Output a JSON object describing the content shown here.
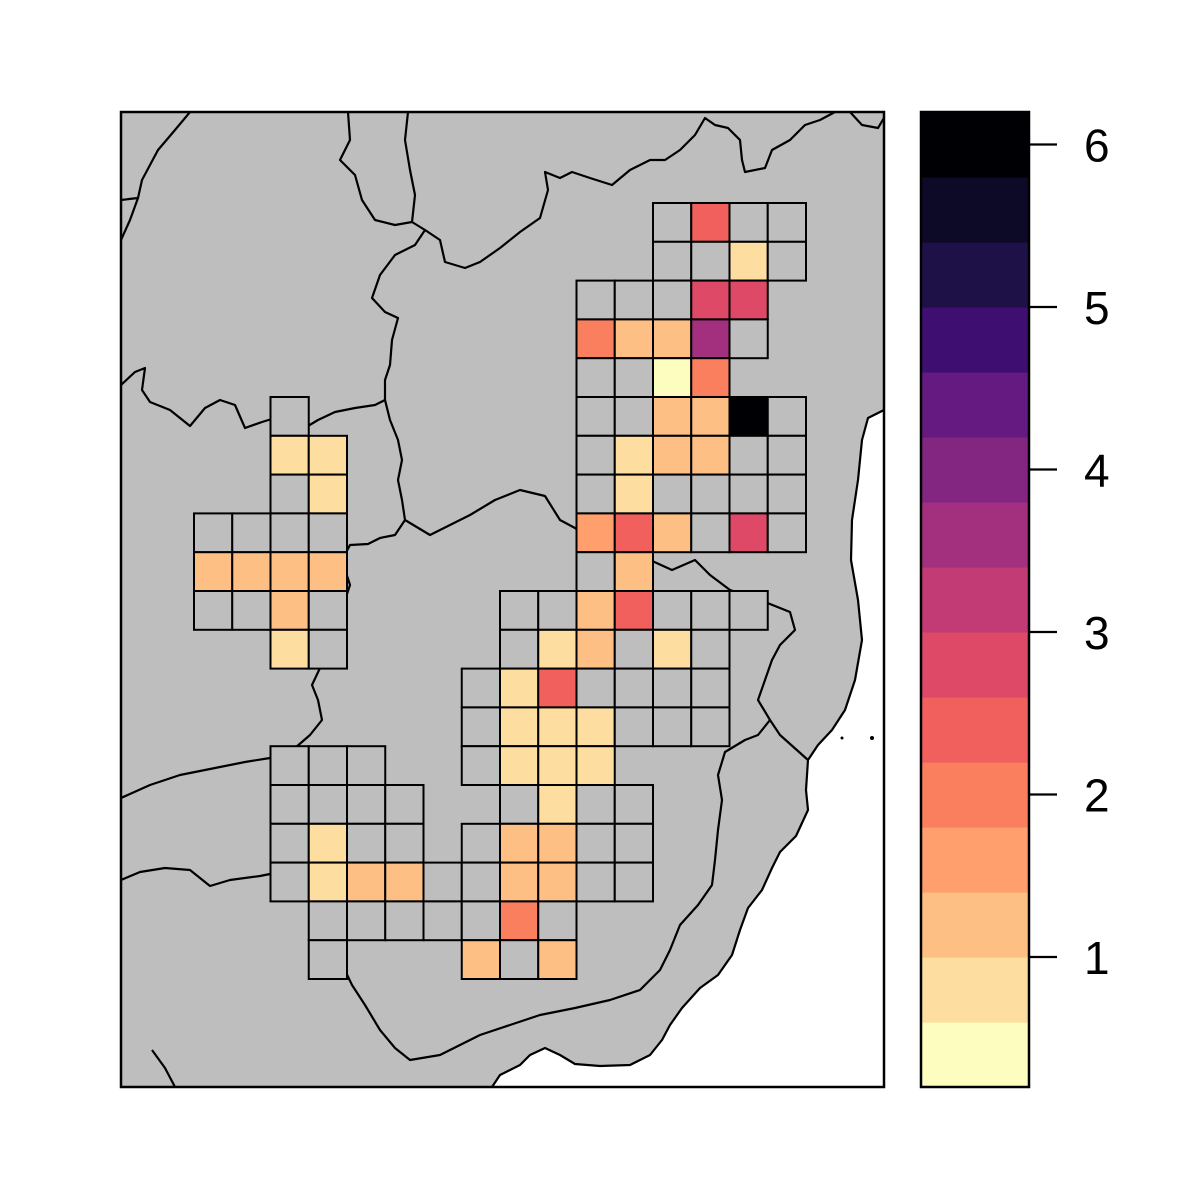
{
  "map": {
    "land_color": "#bebebe",
    "sea_color": "#ffffff",
    "border_color": "#000000",
    "empty_cell_color": "#bebebe"
  },
  "legend": {
    "palette": [
      "#fcfdbf",
      "#fddea0",
      "#febf84",
      "#fe9f6d",
      "#fa7f5e",
      "#f1605d",
      "#de4968",
      "#c33b75",
      "#a3307e",
      "#832681",
      "#641a80",
      "#3e0f70",
      "#1e1147",
      "#0d0a28",
      "#000004"
    ],
    "tick_values": [
      1,
      2,
      3,
      4,
      5,
      6
    ],
    "tick_labels": [
      "1",
      "2",
      "3",
      "4",
      "5",
      "6"
    ],
    "range": [
      0.2,
      6.2
    ]
  },
  "grid_cells": [
    {
      "row": 0,
      "col": 14,
      "level": 0
    },
    {
      "row": 0,
      "col": 15,
      "level": 6
    },
    {
      "row": 0,
      "col": 16,
      "level": 0
    },
    {
      "row": 0,
      "col": 17,
      "level": 0
    },
    {
      "row": 1,
      "col": 14,
      "level": 0
    },
    {
      "row": 1,
      "col": 15,
      "level": 0
    },
    {
      "row": 1,
      "col": 16,
      "level": 2
    },
    {
      "row": 1,
      "col": 17,
      "level": 0
    },
    {
      "row": 2,
      "col": 12,
      "level": 0
    },
    {
      "row": 2,
      "col": 13,
      "level": 0
    },
    {
      "row": 2,
      "col": 14,
      "level": 0
    },
    {
      "row": 2,
      "col": 15,
      "level": 7
    },
    {
      "row": 2,
      "col": 16,
      "level": 7
    },
    {
      "row": 3,
      "col": 12,
      "level": 5
    },
    {
      "row": 3,
      "col": 13,
      "level": 3
    },
    {
      "row": 3,
      "col": 14,
      "level": 3
    },
    {
      "row": 3,
      "col": 15,
      "level": 9
    },
    {
      "row": 3,
      "col": 16,
      "level": 0
    },
    {
      "row": 4,
      "col": 12,
      "level": 0
    },
    {
      "row": 4,
      "col": 13,
      "level": 0
    },
    {
      "row": 4,
      "col": 14,
      "level": 1
    },
    {
      "row": 4,
      "col": 15,
      "level": 5
    },
    {
      "row": 5,
      "col": 4,
      "level": 0
    },
    {
      "row": 5,
      "col": 12,
      "level": 0
    },
    {
      "row": 5,
      "col": 13,
      "level": 0
    },
    {
      "row": 5,
      "col": 14,
      "level": 3
    },
    {
      "row": 5,
      "col": 15,
      "level": 3
    },
    {
      "row": 5,
      "col": 16,
      "level": 15
    },
    {
      "row": 5,
      "col": 17,
      "level": 0
    },
    {
      "row": 6,
      "col": 4,
      "level": 2
    },
    {
      "row": 6,
      "col": 5,
      "level": 2
    },
    {
      "row": 6,
      "col": 12,
      "level": 0
    },
    {
      "row": 6,
      "col": 13,
      "level": 2
    },
    {
      "row": 6,
      "col": 14,
      "level": 3
    },
    {
      "row": 6,
      "col": 15,
      "level": 3
    },
    {
      "row": 6,
      "col": 16,
      "level": 0
    },
    {
      "row": 6,
      "col": 17,
      "level": 0
    },
    {
      "row": 7,
      "col": 4,
      "level": 0
    },
    {
      "row": 7,
      "col": 5,
      "level": 2
    },
    {
      "row": 7,
      "col": 12,
      "level": 0
    },
    {
      "row": 7,
      "col": 13,
      "level": 2
    },
    {
      "row": 7,
      "col": 14,
      "level": 0
    },
    {
      "row": 7,
      "col": 15,
      "level": 0
    },
    {
      "row": 7,
      "col": 16,
      "level": 0
    },
    {
      "row": 7,
      "col": 17,
      "level": 0
    },
    {
      "row": 8,
      "col": 2,
      "level": 0
    },
    {
      "row": 8,
      "col": 3,
      "level": 0
    },
    {
      "row": 8,
      "col": 4,
      "level": 0
    },
    {
      "row": 8,
      "col": 5,
      "level": 0
    },
    {
      "row": 8,
      "col": 12,
      "level": 4
    },
    {
      "row": 8,
      "col": 13,
      "level": 6
    },
    {
      "row": 8,
      "col": 14,
      "level": 3
    },
    {
      "row": 8,
      "col": 15,
      "level": 0
    },
    {
      "row": 8,
      "col": 16,
      "level": 7
    },
    {
      "row": 8,
      "col": 17,
      "level": 0
    },
    {
      "row": 9,
      "col": 2,
      "level": 3
    },
    {
      "row": 9,
      "col": 3,
      "level": 3
    },
    {
      "row": 9,
      "col": 4,
      "level": 3
    },
    {
      "row": 9,
      "col": 5,
      "level": 3
    },
    {
      "row": 9,
      "col": 12,
      "level": 0
    },
    {
      "row": 9,
      "col": 13,
      "level": 3
    },
    {
      "row": 10,
      "col": 2,
      "level": 0
    },
    {
      "row": 10,
      "col": 3,
      "level": 0
    },
    {
      "row": 10,
      "col": 4,
      "level": 3
    },
    {
      "row": 10,
      "col": 5,
      "level": 0
    },
    {
      "row": 10,
      "col": 10,
      "level": 0
    },
    {
      "row": 10,
      "col": 11,
      "level": 0
    },
    {
      "row": 10,
      "col": 12,
      "level": 3
    },
    {
      "row": 10,
      "col": 13,
      "level": 6
    },
    {
      "row": 10,
      "col": 14,
      "level": 0
    },
    {
      "row": 10,
      "col": 15,
      "level": 0
    },
    {
      "row": 10,
      "col": 16,
      "level": 0
    },
    {
      "row": 11,
      "col": 4,
      "level": 2
    },
    {
      "row": 11,
      "col": 5,
      "level": 0
    },
    {
      "row": 11,
      "col": 10,
      "level": 0
    },
    {
      "row": 11,
      "col": 11,
      "level": 2
    },
    {
      "row": 11,
      "col": 12,
      "level": 3
    },
    {
      "row": 11,
      "col": 13,
      "level": 0
    },
    {
      "row": 11,
      "col": 14,
      "level": 2
    },
    {
      "row": 11,
      "col": 15,
      "level": 0
    },
    {
      "row": 12,
      "col": 9,
      "level": 0
    },
    {
      "row": 12,
      "col": 10,
      "level": 2
    },
    {
      "row": 12,
      "col": 11,
      "level": 6
    },
    {
      "row": 12,
      "col": 12,
      "level": 0
    },
    {
      "row": 12,
      "col": 13,
      "level": 0
    },
    {
      "row": 12,
      "col": 14,
      "level": 0
    },
    {
      "row": 12,
      "col": 15,
      "level": 0
    },
    {
      "row": 13,
      "col": 9,
      "level": 0
    },
    {
      "row": 13,
      "col": 10,
      "level": 2
    },
    {
      "row": 13,
      "col": 11,
      "level": 2
    },
    {
      "row": 13,
      "col": 12,
      "level": 2
    },
    {
      "row": 13,
      "col": 13,
      "level": 0
    },
    {
      "row": 13,
      "col": 14,
      "level": 0
    },
    {
      "row": 13,
      "col": 15,
      "level": 0
    },
    {
      "row": 14,
      "col": 4,
      "level": 0
    },
    {
      "row": 14,
      "col": 5,
      "level": 0
    },
    {
      "row": 14,
      "col": 6,
      "level": 0
    },
    {
      "row": 14,
      "col": 9,
      "level": 0
    },
    {
      "row": 14,
      "col": 10,
      "level": 2
    },
    {
      "row": 14,
      "col": 11,
      "level": 2
    },
    {
      "row": 14,
      "col": 12,
      "level": 2
    },
    {
      "row": 15,
      "col": 4,
      "level": 0
    },
    {
      "row": 15,
      "col": 5,
      "level": 0
    },
    {
      "row": 15,
      "col": 6,
      "level": 0
    },
    {
      "row": 15,
      "col": 7,
      "level": 0
    },
    {
      "row": 15,
      "col": 10,
      "level": 0
    },
    {
      "row": 15,
      "col": 11,
      "level": 2
    },
    {
      "row": 15,
      "col": 12,
      "level": 0
    },
    {
      "row": 15,
      "col": 13,
      "level": 0
    },
    {
      "row": 16,
      "col": 4,
      "level": 0
    },
    {
      "row": 16,
      "col": 5,
      "level": 2
    },
    {
      "row": 16,
      "col": 6,
      "level": 0
    },
    {
      "row": 16,
      "col": 7,
      "level": 0
    },
    {
      "row": 16,
      "col": 9,
      "level": 0
    },
    {
      "row": 16,
      "col": 10,
      "level": 3
    },
    {
      "row": 16,
      "col": 11,
      "level": 3
    },
    {
      "row": 16,
      "col": 12,
      "level": 0
    },
    {
      "row": 16,
      "col": 13,
      "level": 0
    },
    {
      "row": 17,
      "col": 4,
      "level": 0
    },
    {
      "row": 17,
      "col": 5,
      "level": 2
    },
    {
      "row": 17,
      "col": 6,
      "level": 3
    },
    {
      "row": 17,
      "col": 7,
      "level": 3
    },
    {
      "row": 17,
      "col": 8,
      "level": 0
    },
    {
      "row": 17,
      "col": 9,
      "level": 0
    },
    {
      "row": 17,
      "col": 10,
      "level": 3
    },
    {
      "row": 17,
      "col": 11,
      "level": 3
    },
    {
      "row": 17,
      "col": 12,
      "level": 0
    },
    {
      "row": 17,
      "col": 13,
      "level": 0
    },
    {
      "row": 18,
      "col": 5,
      "level": 0
    },
    {
      "row": 18,
      "col": 6,
      "level": 0
    },
    {
      "row": 18,
      "col": 7,
      "level": 0
    },
    {
      "row": 18,
      "col": 8,
      "level": 0
    },
    {
      "row": 18,
      "col": 9,
      "level": 0
    },
    {
      "row": 18,
      "col": 10,
      "level": 5
    },
    {
      "row": 18,
      "col": 11,
      "level": 0
    },
    {
      "row": 19,
      "col": 5,
      "level": 0
    },
    {
      "row": 19,
      "col": 9,
      "level": 3
    },
    {
      "row": 19,
      "col": 10,
      "level": 0
    },
    {
      "row": 19,
      "col": 11,
      "level": 3
    }
  ]
}
